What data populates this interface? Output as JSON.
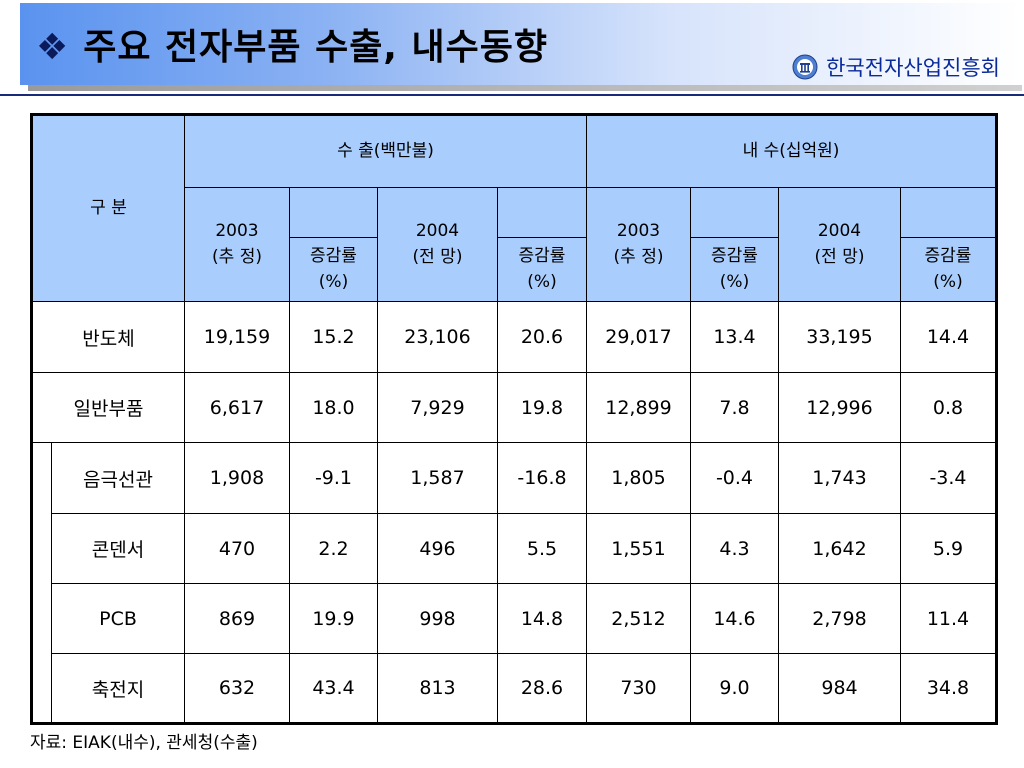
{
  "header": {
    "title": "주요 전자부품 수출, 내수동향",
    "org": "한국전자산업진흥회",
    "bullet_icon": "diamond-bullet-icon",
    "colors": {
      "title_band": "#5a93ef",
      "table_header": "#a9cdfc",
      "org_text": "#0a2a9a"
    }
  },
  "table": {
    "corner": "구   분",
    "groups": {
      "export": "수      출(백만불)",
      "domestic": "내      수(십억원)"
    },
    "year_2003": "2003",
    "year_2003_note": "(추 정)",
    "year_2004": "2004",
    "year_2004_note": "(전 망)",
    "rate_label": "증감률",
    "rate_unit": "(%)",
    "rows": [
      {
        "name": "반도체",
        "v": [
          "19,159",
          "15.2",
          "23,106",
          "20.6",
          "29,017",
          "13.4",
          "33,195",
          "14.4"
        ]
      },
      {
        "name": "일반부품",
        "v": [
          "6,617",
          "18.0",
          "7,929",
          "19.8",
          "12,899",
          "7.8",
          "12,996",
          "0.8"
        ]
      },
      {
        "name": "음극선관",
        "v": [
          "1,908",
          "-9.1",
          "1,587",
          "-16.8",
          "1,805",
          "-0.4",
          "1,743",
          "-3.4"
        ]
      },
      {
        "name": "콘덴서",
        "v": [
          "470",
          "2.2",
          "496",
          "5.5",
          "1,551",
          "4.3",
          "1,642",
          "5.9"
        ]
      },
      {
        "name": "PCB",
        "v": [
          "869",
          "19.9",
          "998",
          "14.8",
          "2,512",
          "14.6",
          "2,798",
          "11.4"
        ]
      },
      {
        "name": "축전지",
        "v": [
          "632",
          "43.4",
          "813",
          "28.6",
          "730",
          "9.0",
          "984",
          "34.8"
        ]
      }
    ]
  },
  "source": "자료: EIAK(내수), 관세청(수출)"
}
